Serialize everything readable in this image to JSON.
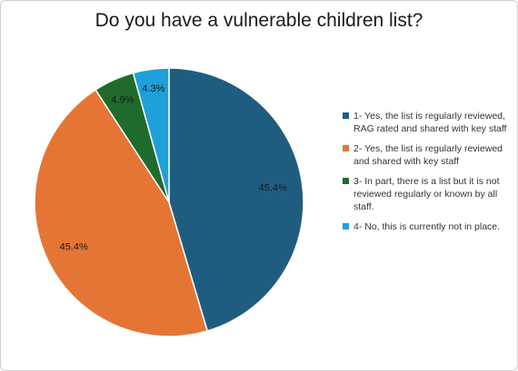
{
  "chart_data": {
    "type": "pie",
    "title": "Do you have a vulnerable children list?",
    "categories": [
      "1- Yes, the list is regularly reviewed, RAG rated and shared with key staff",
      "2- Yes, the list is regularly reviewed and shared with key staff",
      "3- In part, there is a list but it is not reviewed regularly or known by all staff.",
      "4- No, this is currently not in place."
    ],
    "values": [
      45.4,
      45.4,
      4.9,
      4.3
    ],
    "labels": [
      "45.4%",
      "45.4%",
      "4.9%",
      "4.3%"
    ],
    "colors": [
      "#1f5d80",
      "#e57535",
      "#1f6b2c",
      "#1ea0d8"
    ],
    "legend_position": "right",
    "start": "12 o'clock, clockwise"
  }
}
